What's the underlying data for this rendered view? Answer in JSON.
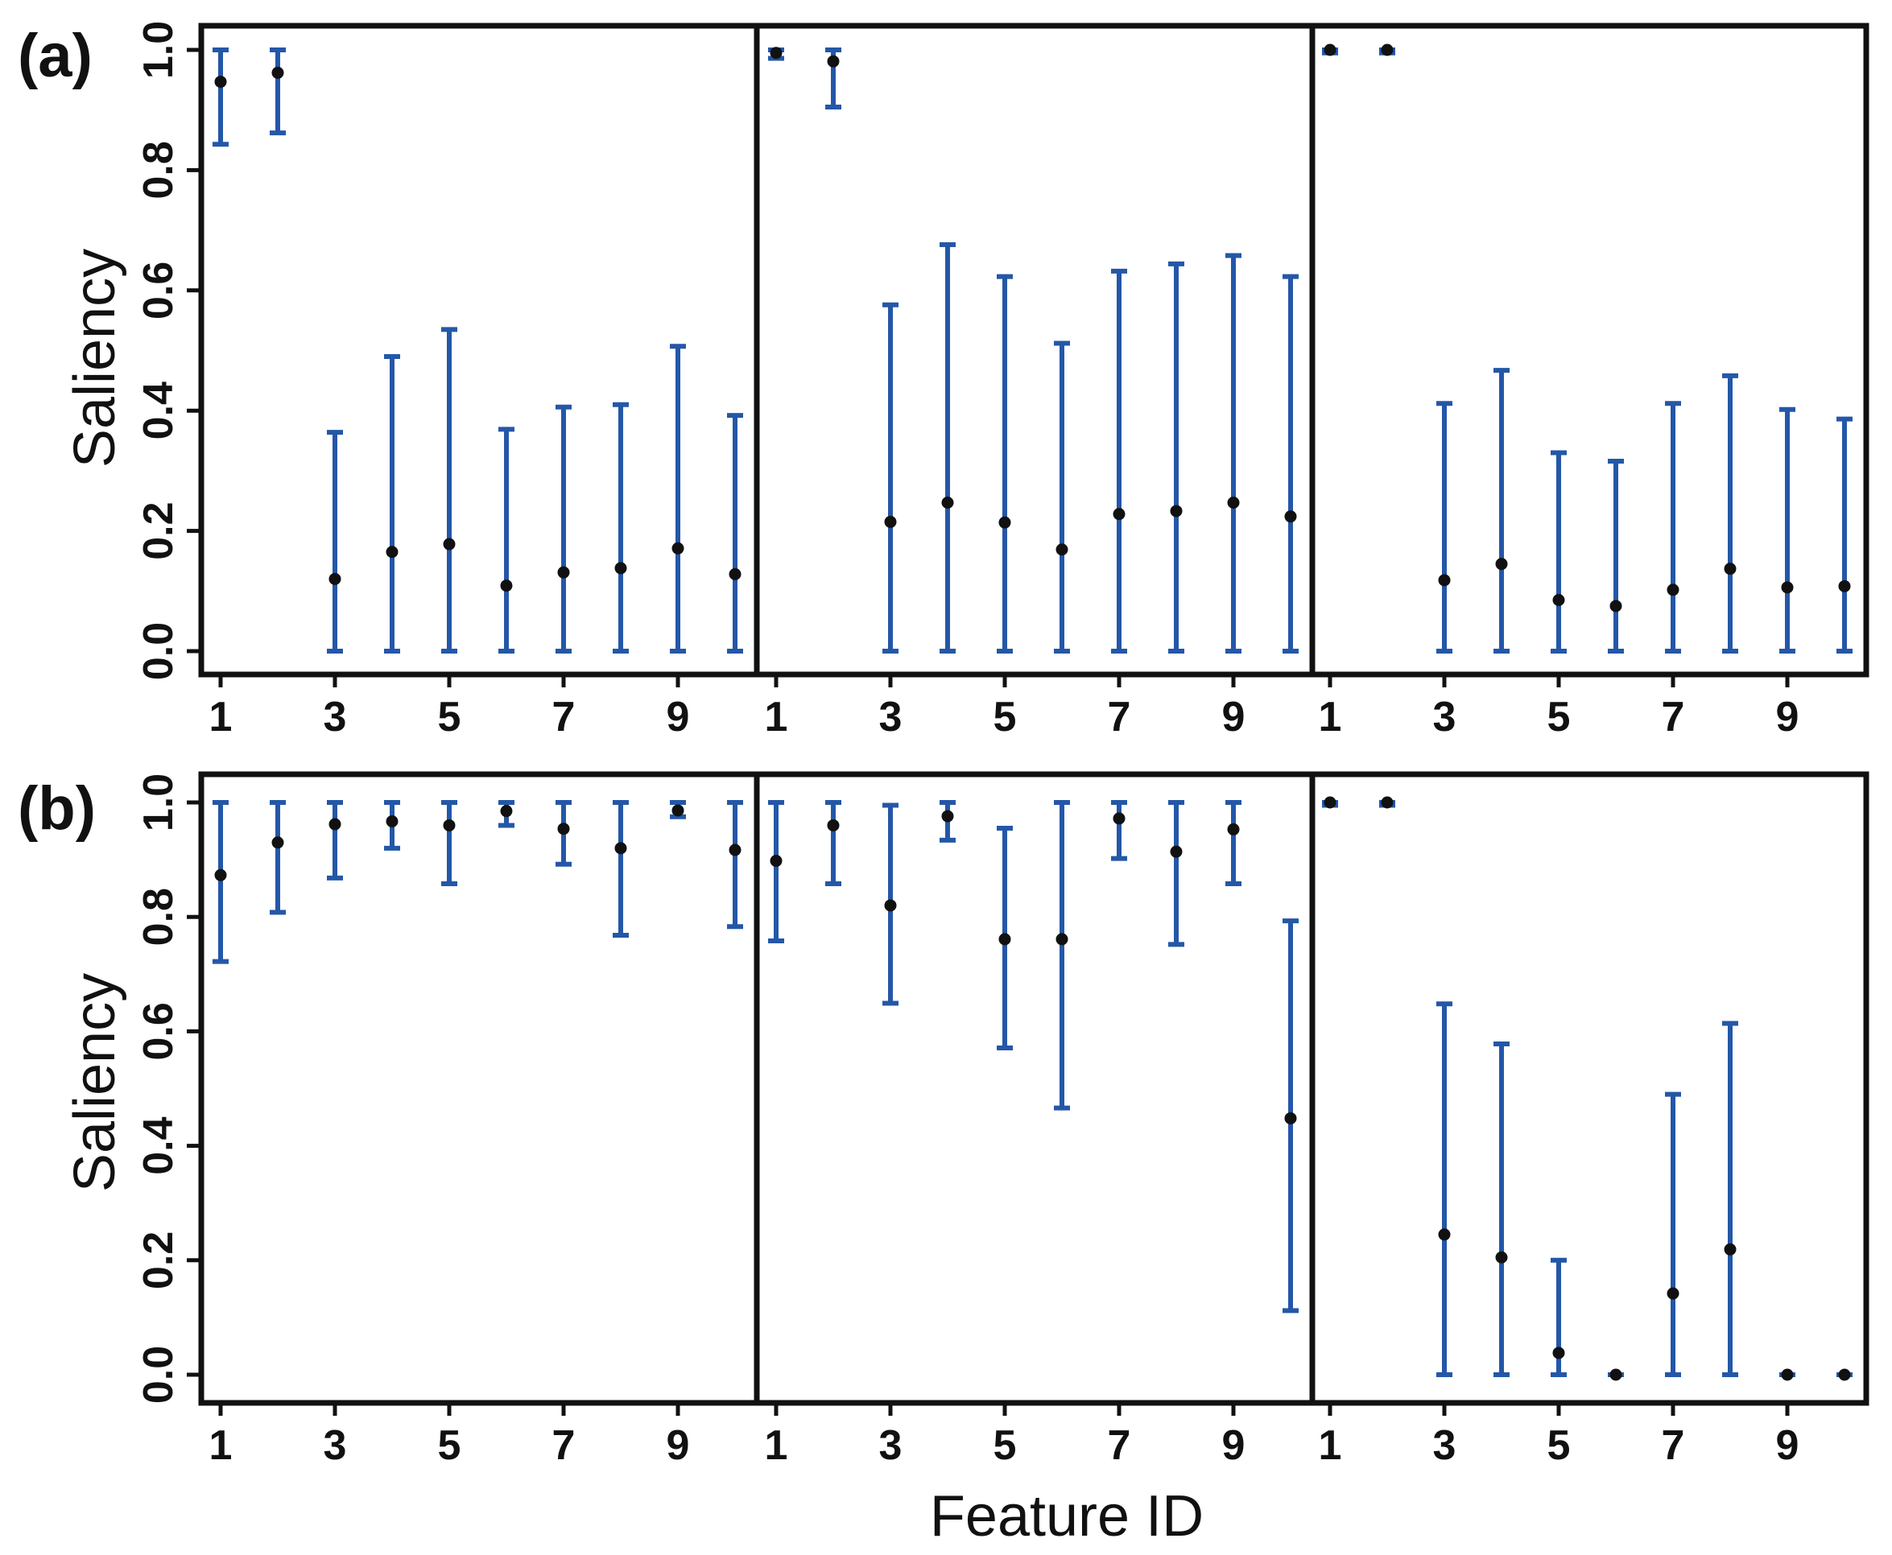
{
  "figure": {
    "xlabel": "Feature ID",
    "ylabel": "Saliency",
    "x_tick_labels": [
      "1",
      "3",
      "5",
      "7",
      "9"
    ],
    "y_tick_labels": [
      "0.0",
      "0.2",
      "0.4",
      "0.6",
      "0.8",
      "1.0"
    ],
    "errorbar_color": "#2457a8",
    "point_color": "#111111",
    "frame_color": "#111111"
  },
  "chart_data": [
    {
      "type": "scatter",
      "panel": "(a)",
      "xlabel": "",
      "ylabel": "Saliency",
      "ylim": [
        0,
        1
      ],
      "x_ticks": [
        1,
        3,
        5,
        7,
        9
      ],
      "y_ticks": [
        0.0,
        0.2,
        0.4,
        0.6,
        0.8,
        1.0
      ],
      "subplots": [
        {
          "x": [
            1,
            2,
            3,
            4,
            5,
            6,
            7,
            8,
            9,
            10
          ],
          "y": [
            0.947,
            0.962,
            0.12,
            0.165,
            0.178,
            0.109,
            0.131,
            0.138,
            0.171,
            0.128
          ],
          "lower": [
            0.843,
            0.862,
            0.0,
            0.0,
            0.0,
            0.0,
            0.0,
            0.0,
            0.0,
            0.0
          ],
          "upper": [
            1.0,
            1.0,
            0.364,
            0.49,
            0.535,
            0.369,
            0.406,
            0.41,
            0.507,
            0.392
          ]
        },
        {
          "x": [
            1,
            2,
            3,
            4,
            5,
            6,
            7,
            8,
            9,
            10
          ],
          "y": [
            0.995,
            0.981,
            0.215,
            0.247,
            0.214,
            0.169,
            0.228,
            0.233,
            0.247,
            0.224
          ],
          "lower": [
            0.986,
            0.905,
            0.0,
            0.0,
            0.0,
            0.0,
            0.0,
            0.0,
            0.0,
            0.0
          ],
          "upper": [
            1.0,
            1.0,
            0.576,
            0.676,
            0.623,
            0.512,
            0.632,
            0.644,
            0.658,
            0.623
          ]
        },
        {
          "x": [
            1,
            2,
            3,
            4,
            5,
            6,
            7,
            8,
            9,
            10
          ],
          "y": [
            1.0,
            1.0,
            0.118,
            0.145,
            0.085,
            0.075,
            0.102,
            0.137,
            0.106,
            0.108
          ],
          "lower": [
            0.995,
            0.995,
            0.0,
            0.0,
            0.0,
            0.0,
            0.0,
            0.0,
            0.0,
            0.0
          ],
          "upper": [
            1.0,
            1.0,
            0.412,
            0.467,
            0.33,
            0.316,
            0.412,
            0.458,
            0.402,
            0.386
          ]
        }
      ]
    },
    {
      "type": "scatter",
      "panel": "(b)",
      "xlabel": "Feature ID",
      "ylabel": "Saliency",
      "ylim": [
        0,
        1
      ],
      "x_ticks": [
        1,
        3,
        5,
        7,
        9
      ],
      "y_ticks": [
        0.0,
        0.2,
        0.4,
        0.6,
        0.8,
        1.0
      ],
      "subplots": [
        {
          "x": [
            1,
            2,
            3,
            4,
            5,
            6,
            7,
            8,
            9,
            10
          ],
          "y": [
            0.873,
            0.93,
            0.962,
            0.967,
            0.96,
            0.985,
            0.954,
            0.92,
            0.986,
            0.917
          ],
          "lower": [
            0.722,
            0.808,
            0.868,
            0.92,
            0.858,
            0.96,
            0.892,
            0.768,
            0.975,
            0.783
          ],
          "upper": [
            1.0,
            1.0,
            1.0,
            1.0,
            1.0,
            1.0,
            1.0,
            1.0,
            1.0,
            1.0
          ]
        },
        {
          "x": [
            1,
            2,
            3,
            4,
            5,
            6,
            7,
            8,
            9,
            10
          ],
          "y": [
            0.898,
            0.96,
            0.82,
            0.976,
            0.761,
            0.761,
            0.972,
            0.914,
            0.953,
            0.448
          ],
          "lower": [
            0.758,
            0.858,
            0.649,
            0.934,
            0.571,
            0.466,
            0.902,
            0.752,
            0.858,
            0.112
          ],
          "upper": [
            1.0,
            1.0,
            0.995,
            1.0,
            0.955,
            1.0,
            1.0,
            1.0,
            1.0,
            0.793
          ]
        },
        {
          "x": [
            1,
            2,
            3,
            4,
            5,
            6,
            7,
            8,
            9,
            10
          ],
          "y": [
            1.0,
            1.0,
            0.245,
            0.205,
            0.038,
            0.0,
            0.142,
            0.219,
            0.0,
            0.0
          ],
          "lower": [
            0.995,
            0.995,
            0.0,
            0.0,
            0.0,
            0.0,
            0.0,
            0.0,
            0.0,
            0.0
          ],
          "upper": [
            1.0,
            1.0,
            0.648,
            0.578,
            0.2,
            0.0,
            0.49,
            0.614,
            0.0,
            0.0
          ]
        }
      ]
    }
  ]
}
